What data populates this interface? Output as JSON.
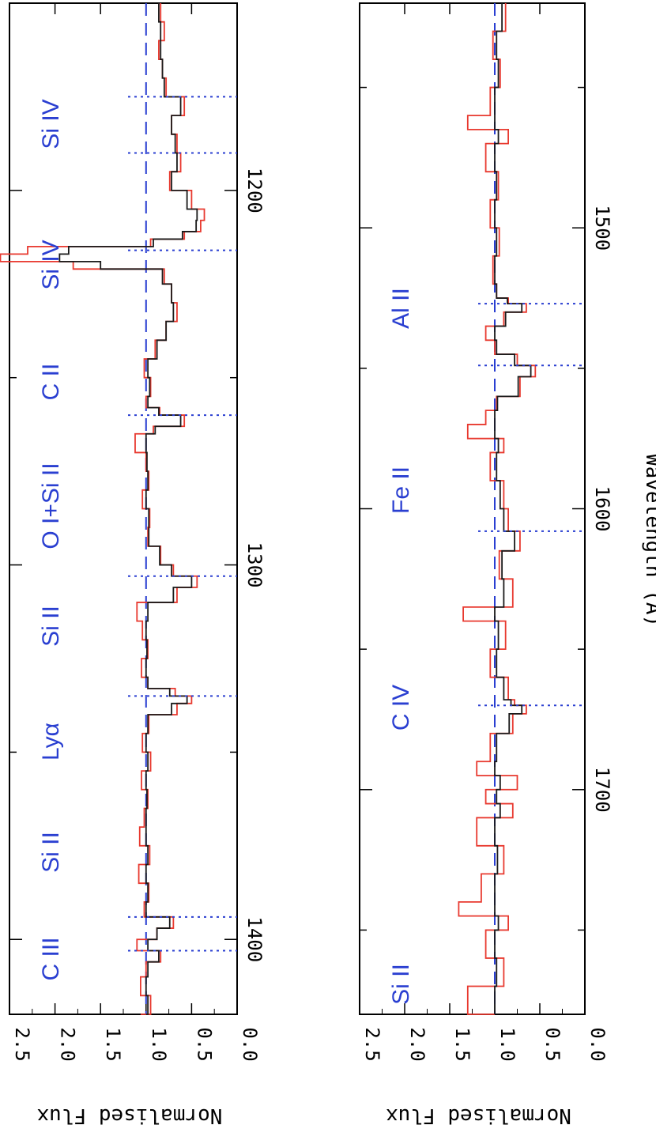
{
  "chart_data": [
    {
      "type": "line",
      "ylabel": "Normalised Flux",
      "xlabel": "",
      "xlim": [
        1150,
        1420
      ],
      "ylim": [
        0.0,
        2.5
      ],
      "x_ticks": [
        1200,
        1300,
        1400
      ],
      "y_ticks": [
        "0.0",
        "0.5",
        "1.0",
        "1.5",
        "2.0",
        "2.5"
      ],
      "continuum_level": 1.0,
      "lines": [
        {
          "label": "C III",
          "wavelength": 1175
        },
        {
          "label": "Si II",
          "wavelength": 1190
        },
        {
          "label": "Lyα",
          "wavelength": 1216
        },
        {
          "label": "Si II",
          "wavelength": 1260
        },
        {
          "label": "O I+Si II",
          "wavelength": 1303
        },
        {
          "label": "C II",
          "wavelength": 1335
        },
        {
          "label": "Si IV",
          "wavelength": 1394
        },
        {
          "label": "Si IV",
          "wavelength": 1403
        }
      ],
      "series": [
        {
          "color": "#e8392f",
          "values": [
            [
              1150,
              0.84
            ],
            [
              1155,
              0.8
            ],
            [
              1160,
              0.86
            ],
            [
              1165,
              0.82
            ],
            [
              1170,
              0.78
            ],
            [
              1175,
              0.58
            ],
            [
              1180,
              0.72
            ],
            [
              1185,
              0.66
            ],
            [
              1190,
              0.62
            ],
            [
              1195,
              0.74
            ],
            [
              1200,
              0.5
            ],
            [
              1205,
              0.36
            ],
            [
              1208,
              0.4
            ],
            [
              1211,
              0.58
            ],
            [
              1213,
              0.95
            ],
            [
              1215,
              2.3
            ],
            [
              1217,
              2.6
            ],
            [
              1219,
              1.8
            ],
            [
              1221,
              0.8
            ],
            [
              1225,
              0.72
            ],
            [
              1230,
              0.66
            ],
            [
              1235,
              0.78
            ],
            [
              1240,
              0.9
            ],
            [
              1245,
              1.02
            ],
            [
              1250,
              0.95
            ],
            [
              1255,
              1.0
            ],
            [
              1258,
              0.85
            ],
            [
              1260,
              0.58
            ],
            [
              1263,
              0.92
            ],
            [
              1265,
              1.12
            ],
            [
              1270,
              1.0
            ],
            [
              1275,
              0.97
            ],
            [
              1280,
              1.04
            ],
            [
              1285,
              0.96
            ],
            [
              1290,
              0.98
            ],
            [
              1295,
              0.84
            ],
            [
              1300,
              0.7
            ],
            [
              1303,
              0.44
            ],
            [
              1306,
              0.66
            ],
            [
              1310,
              1.1
            ],
            [
              1315,
              1.04
            ],
            [
              1320,
              0.98
            ],
            [
              1325,
              1.05
            ],
            [
              1330,
              0.98
            ],
            [
              1333,
              0.68
            ],
            [
              1335,
              0.5
            ],
            [
              1337,
              0.66
            ],
            [
              1340,
              0.97
            ],
            [
              1345,
              1.04
            ],
            [
              1350,
              0.95
            ],
            [
              1355,
              1.05
            ],
            [
              1360,
              0.98
            ],
            [
              1365,
              1.02
            ],
            [
              1370,
              1.07
            ],
            [
              1375,
              0.96
            ],
            [
              1380,
              1.08
            ],
            [
              1385,
              0.97
            ],
            [
              1390,
              1.02
            ],
            [
              1394,
              0.7
            ],
            [
              1397,
              0.88
            ],
            [
              1400,
              1.1
            ],
            [
              1403,
              0.84
            ],
            [
              1406,
              1.0
            ],
            [
              1410,
              1.06
            ],
            [
              1415,
              0.95
            ],
            [
              1420,
              1.06
            ]
          ]
        },
        {
          "color": "#1a1a1a",
          "values": [
            [
              1150,
              0.86
            ],
            [
              1155,
              0.84
            ],
            [
              1160,
              0.84
            ],
            [
              1165,
              0.82
            ],
            [
              1170,
              0.8
            ],
            [
              1175,
              0.62
            ],
            [
              1180,
              0.72
            ],
            [
              1185,
              0.68
            ],
            [
              1190,
              0.66
            ],
            [
              1195,
              0.72
            ],
            [
              1200,
              0.55
            ],
            [
              1205,
              0.44
            ],
            [
              1208,
              0.45
            ],
            [
              1211,
              0.6
            ],
            [
              1213,
              0.92
            ],
            [
              1215,
              1.85
            ],
            [
              1217,
              1.95
            ],
            [
              1219,
              1.5
            ],
            [
              1221,
              0.82
            ],
            [
              1225,
              0.72
            ],
            [
              1230,
              0.7
            ],
            [
              1235,
              0.78
            ],
            [
              1240,
              0.88
            ],
            [
              1245,
              0.98
            ],
            [
              1250,
              0.96
            ],
            [
              1255,
              0.98
            ],
            [
              1258,
              0.86
            ],
            [
              1260,
              0.62
            ],
            [
              1263,
              0.9
            ],
            [
              1265,
              1.0
            ],
            [
              1270,
              0.99
            ],
            [
              1275,
              0.98
            ],
            [
              1280,
              1.0
            ],
            [
              1285,
              0.97
            ],
            [
              1290,
              0.97
            ],
            [
              1295,
              0.85
            ],
            [
              1300,
              0.72
            ],
            [
              1303,
              0.5
            ],
            [
              1306,
              0.7
            ],
            [
              1310,
              0.98
            ],
            [
              1315,
              1.0
            ],
            [
              1320,
              0.99
            ],
            [
              1325,
              1.0
            ],
            [
              1330,
              0.98
            ],
            [
              1333,
              0.74
            ],
            [
              1335,
              0.55
            ],
            [
              1337,
              0.72
            ],
            [
              1340,
              0.98
            ],
            [
              1345,
              1.0
            ],
            [
              1350,
              0.98
            ],
            [
              1355,
              1.0
            ],
            [
              1360,
              0.99
            ],
            [
              1365,
              1.0
            ],
            [
              1370,
              1.0
            ],
            [
              1375,
              0.98
            ],
            [
              1380,
              1.0
            ],
            [
              1385,
              0.98
            ],
            [
              1390,
              1.0
            ],
            [
              1394,
              0.74
            ],
            [
              1397,
              0.88
            ],
            [
              1400,
              0.98
            ],
            [
              1403,
              0.86
            ],
            [
              1406,
              0.98
            ],
            [
              1410,
              1.0
            ],
            [
              1415,
              0.98
            ],
            [
              1420,
              1.0
            ]
          ]
        }
      ]
    },
    {
      "type": "line",
      "ylabel": "Normalised Flux",
      "xlabel": "Wavelength (Å)",
      "xlim": [
        1420,
        1780
      ],
      "ylim": [
        0.0,
        2.5
      ],
      "x_ticks": [
        1500,
        1600,
        1700
      ],
      "y_ticks": [
        "0.0",
        "0.5",
        "1.0",
        "1.5",
        "2.0",
        "2.5"
      ],
      "continuum_level": 1.0,
      "lines": [
        {
          "label": "Si II",
          "wavelength": 1527
        },
        {
          "label": "C IV",
          "wavelength": 1549
        },
        {
          "label": "Fe II",
          "wavelength": 1608
        },
        {
          "label": "Al II",
          "wavelength": 1670
        }
      ],
      "series": [
        {
          "color": "#e8392f",
          "values": [
            [
              1420,
              0.88
            ],
            [
              1430,
              1.02
            ],
            [
              1440,
              0.94
            ],
            [
              1450,
              1.05
            ],
            [
              1460,
              1.3
            ],
            [
              1465,
              0.85
            ],
            [
              1470,
              1.1
            ],
            [
              1480,
              0.96
            ],
            [
              1490,
              1.05
            ],
            [
              1500,
              0.95
            ],
            [
              1510,
              1.02
            ],
            [
              1520,
              0.98
            ],
            [
              1525,
              0.85
            ],
            [
              1527,
              0.65
            ],
            [
              1530,
              0.9
            ],
            [
              1535,
              1.1
            ],
            [
              1540,
              1.0
            ],
            [
              1545,
              0.75
            ],
            [
              1549,
              0.55
            ],
            [
              1553,
              0.72
            ],
            [
              1560,
              0.98
            ],
            [
              1565,
              1.1
            ],
            [
              1570,
              1.3
            ],
            [
              1575,
              0.9
            ],
            [
              1580,
              1.05
            ],
            [
              1590,
              0.9
            ],
            [
              1600,
              0.85
            ],
            [
              1608,
              0.72
            ],
            [
              1615,
              0.95
            ],
            [
              1625,
              0.8
            ],
            [
              1635,
              1.35
            ],
            [
              1640,
              0.88
            ],
            [
              1650,
              1.05
            ],
            [
              1660,
              0.85
            ],
            [
              1668,
              0.78
            ],
            [
              1670,
              0.65
            ],
            [
              1673,
              0.8
            ],
            [
              1680,
              1.05
            ],
            [
              1690,
              1.2
            ],
            [
              1695,
              0.75
            ],
            [
              1700,
              1.1
            ],
            [
              1705,
              0.8
            ],
            [
              1710,
              1.2
            ],
            [
              1720,
              0.9
            ],
            [
              1730,
              1.15
            ],
            [
              1740,
              1.4
            ],
            [
              1745,
              0.85
            ],
            [
              1750,
              1.1
            ],
            [
              1760,
              0.9
            ],
            [
              1770,
              1.3
            ],
            [
              1780,
              1.0
            ]
          ]
        },
        {
          "color": "#1a1a1a",
          "values": [
            [
              1420,
              0.92
            ],
            [
              1430,
              0.98
            ],
            [
              1440,
              0.96
            ],
            [
              1450,
              1.0
            ],
            [
              1460,
              1.0
            ],
            [
              1465,
              0.96
            ],
            [
              1470,
              1.0
            ],
            [
              1480,
              0.98
            ],
            [
              1490,
              1.0
            ],
            [
              1500,
              0.98
            ],
            [
              1510,
              1.0
            ],
            [
              1520,
              0.98
            ],
            [
              1525,
              0.86
            ],
            [
              1527,
              0.7
            ],
            [
              1530,
              0.88
            ],
            [
              1535,
              1.0
            ],
            [
              1540,
              0.98
            ],
            [
              1545,
              0.78
            ],
            [
              1549,
              0.6
            ],
            [
              1553,
              0.74
            ],
            [
              1560,
              0.97
            ],
            [
              1565,
              1.0
            ],
            [
              1570,
              1.0
            ],
            [
              1575,
              0.96
            ],
            [
              1580,
              0.98
            ],
            [
              1590,
              0.94
            ],
            [
              1600,
              0.9
            ],
            [
              1608,
              0.78
            ],
            [
              1615,
              0.92
            ],
            [
              1625,
              0.9
            ],
            [
              1635,
              1.0
            ],
            [
              1640,
              0.96
            ],
            [
              1650,
              0.98
            ],
            [
              1660,
              0.9
            ],
            [
              1668,
              0.82
            ],
            [
              1670,
              0.7
            ],
            [
              1673,
              0.84
            ],
            [
              1680,
              0.98
            ],
            [
              1690,
              1.0
            ],
            [
              1695,
              0.94
            ],
            [
              1700,
              0.98
            ],
            [
              1705,
              0.94
            ],
            [
              1710,
              1.0
            ],
            [
              1720,
              0.97
            ],
            [
              1730,
              1.0
            ],
            [
              1740,
              1.0
            ],
            [
              1745,
              0.96
            ],
            [
              1750,
              1.0
            ],
            [
              1760,
              0.98
            ],
            [
              1770,
              1.0
            ],
            [
              1780,
              1.0
            ]
          ]
        }
      ]
    }
  ]
}
